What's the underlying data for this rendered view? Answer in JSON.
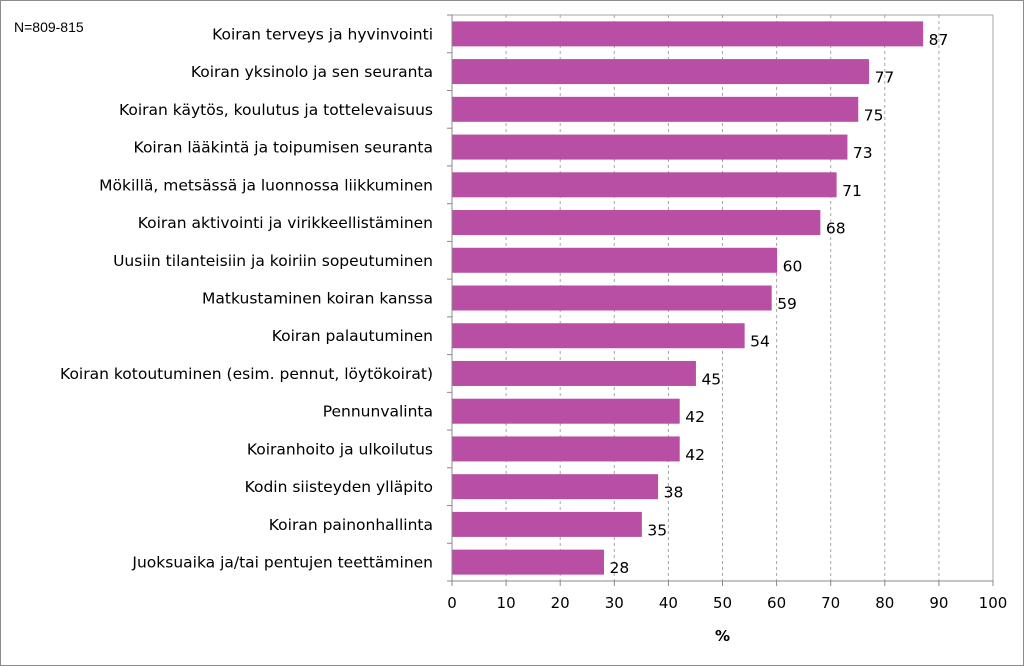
{
  "note": "N=809-815",
  "chart_data": {
    "type": "bar",
    "orientation": "horizontal",
    "title": "",
    "xlabel": "%",
    "ylabel": "",
    "xlim": [
      0,
      100
    ],
    "ticks": [
      "0",
      "10",
      "20",
      "30",
      "40",
      "50",
      "60",
      "70",
      "80",
      "90",
      "100"
    ],
    "grid": "vertical dashed",
    "bar_color": "#b84fa4",
    "categories": [
      "Koiran terveys ja hyvinvointi",
      "Koiran yksinolo ja sen seuranta",
      "Koiran käytös, koulutus ja tottelevaisuus",
      "Koiran lääkintä ja toipumisen seuranta",
      "Mökillä, metsässä ja luonnossa liikkuminen",
      "Koiran aktivointi ja virikkeellistäminen",
      "Uusiin tilanteisiin ja koiriin sopeutuminen",
      "Matkustaminen koiran kanssa",
      "Koiran palautuminen",
      "Koiran kotoutuminen (esim. pennut, löytökoirat)",
      "Pennunvalinta",
      "Koiranhoito ja ulkoilutus",
      "Kodin siisteyden ylläpito",
      "Koiran painonhallinta",
      "Juoksuaika ja/tai pentujen teettäminen"
    ],
    "values": [
      87,
      77,
      75,
      73,
      71,
      68,
      60,
      59,
      54,
      45,
      42,
      42,
      38,
      35,
      28
    ]
  }
}
